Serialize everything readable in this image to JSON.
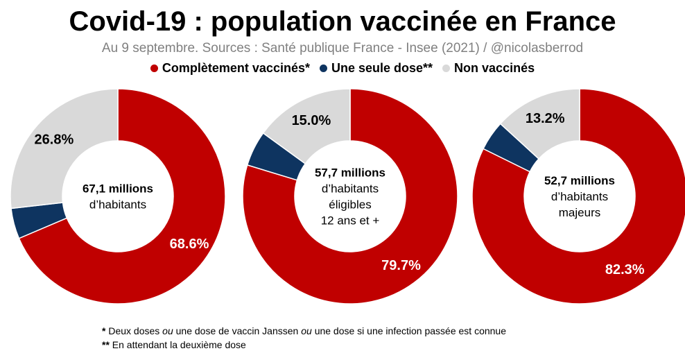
{
  "title": "Covid-19 : population vaccinée en France",
  "subtitle": "Au 9 septembre. Sources : Santé publique France - Insee (2021) / @nicolasberrod",
  "colors": {
    "complete": "#c00000",
    "single": "#0e3460",
    "none": "#d9d9d9",
    "label_light": "#ffffff",
    "label_dark": "#000000"
  },
  "legend": [
    {
      "label": "Complètement vaccinés*",
      "color": "#c00000"
    },
    {
      "label": "Une seule dose**",
      "color": "#0e3460"
    },
    {
      "label": "Non vaccinés",
      "color": "#d9d9d9"
    }
  ],
  "chart_data": [
    {
      "type": "pie",
      "variant": "donut",
      "center_label": {
        "bold": "67,1 millions",
        "lines": [
          "d’habitants"
        ]
      },
      "slices": [
        {
          "name": "Complètement vaccinés",
          "value": 68.6,
          "label": "68.6%"
        },
        {
          "name": "Une seule dose",
          "value": 4.6,
          "label": ""
        },
        {
          "name": "Non vaccinés",
          "value": 26.8,
          "label": "26.8%"
        }
      ]
    },
    {
      "type": "pie",
      "variant": "donut",
      "center_label": {
        "bold": "57,7 millions",
        "lines": [
          "d’habitants",
          "éligibles",
          "12 ans et +"
        ]
      },
      "slices": [
        {
          "name": "Complètement vaccinés",
          "value": 79.7,
          "label": "79.7%"
        },
        {
          "name": "Une seule dose",
          "value": 5.3,
          "label": ""
        },
        {
          "name": "Non vaccinés",
          "value": 15.0,
          "label": "15.0%"
        }
      ]
    },
    {
      "type": "pie",
      "variant": "donut",
      "center_label": {
        "bold": "52,7 millions",
        "lines": [
          "d’habitants",
          "majeurs"
        ]
      },
      "slices": [
        {
          "name": "Complètement vaccinés",
          "value": 82.3,
          "label": "82.3%"
        },
        {
          "name": "Une seule dose",
          "value": 4.5,
          "label": ""
        },
        {
          "name": "Non vaccinés",
          "value": 13.2,
          "label": "13.2%"
        }
      ]
    }
  ],
  "footnotes": {
    "note1": {
      "lead": "*",
      "p1": "Deux doses",
      "i1": "ou",
      "p2": "une dose de vaccin Janssen",
      "i2": "ou",
      "p3": "une dose si une infection passée est connue"
    },
    "note2": {
      "lead": "**",
      "text": "En attendant la deuxième dose"
    }
  }
}
